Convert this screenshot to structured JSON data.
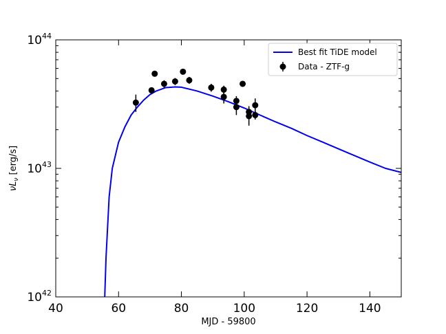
{
  "chart_data": {
    "type": "scatter",
    "xlabel": "MJD - 59800",
    "ylabel": "νL",
    "ylabel_sub": "ν",
    "ylabel_unit": " [erg/s]",
    "xlim": [
      40,
      150
    ],
    "ylim": [
      1e+42,
      1e+44
    ],
    "yscale": "log",
    "x_ticks": [
      40,
      60,
      80,
      100,
      120,
      140
    ],
    "x_tick_labels": [
      "40",
      "60",
      "80",
      "100",
      "120",
      "140"
    ],
    "y_ticks": [
      {
        "value": 1e+42,
        "base": "10",
        "exp": "42"
      },
      {
        "value": 1e+43,
        "base": "10",
        "exp": "43"
      },
      {
        "value": 1e+44,
        "base": "10",
        "exp": "44"
      }
    ],
    "legend": {
      "position": "top-right",
      "model_label": "Best fit TiDE model",
      "data_label": "Data - ZTF-g"
    },
    "series": [
      {
        "name": "Best fit TiDE model",
        "kind": "line",
        "color": "#0000ee",
        "x": [
          55.6,
          56,
          57,
          58,
          60,
          62,
          64,
          66,
          68,
          70,
          72,
          75,
          78,
          80,
          85,
          90,
          95,
          100,
          105,
          110,
          115,
          120,
          125,
          130,
          135,
          140,
          145,
          150
        ],
        "y": [
          1e+42,
          2e+42,
          6e+42,
          1e+43,
          1.6e+43,
          2.1e+43,
          2.6e+43,
          3e+43,
          3.4e+43,
          3.75e+43,
          4e+43,
          4.25e+43,
          4.3e+43,
          4.28e+43,
          4e+43,
          3.65e+43,
          3.3e+43,
          2.95e+43,
          2.6e+43,
          2.3e+43,
          2.05e+43,
          1.8e+43,
          1.6e+43,
          1.42e+43,
          1.26e+43,
          1.12e+43,
          1e+43,
          9.3e+42
        ]
      },
      {
        "name": "Data - ZTF-g",
        "kind": "errorbar",
        "color": "#000000",
        "points": [
          {
            "x": 65.5,
            "y": 3.25e+43,
            "err_lo": 5e+42,
            "err_hi": 5e+42
          },
          {
            "x": 70.5,
            "y": 4.05e+43,
            "err_lo": 2e+42,
            "err_hi": 2e+42
          },
          {
            "x": 71.5,
            "y": 5.45e+43,
            "err_lo": 2e+42,
            "err_hi": 2e+42
          },
          {
            "x": 74.5,
            "y": 4.55e+43,
            "err_lo": 3e+42,
            "err_hi": 3e+42
          },
          {
            "x": 78.0,
            "y": 4.75e+43,
            "err_lo": 3e+42,
            "err_hi": 3e+42
          },
          {
            "x": 80.5,
            "y": 5.65e+43,
            "err_lo": 2e+42,
            "err_hi": 2e+42
          },
          {
            "x": 82.5,
            "y": 4.85e+43,
            "err_lo": 3e+42,
            "err_hi": 3e+42
          },
          {
            "x": 89.5,
            "y": 4.25e+43,
            "err_lo": 3e+42,
            "err_hi": 3e+42
          },
          {
            "x": 93.5,
            "y": 4.1e+43,
            "err_lo": 3e+42,
            "err_hi": 3e+42
          },
          {
            "x": 93.5,
            "y": 3.6e+43,
            "err_lo": 4e+42,
            "err_hi": 4e+42
          },
          {
            "x": 97.5,
            "y": 3.35e+43,
            "err_lo": 3e+42,
            "err_hi": 3e+42
          },
          {
            "x": 97.5,
            "y": 3e+43,
            "err_lo": 4e+42,
            "err_hi": 4e+42
          },
          {
            "x": 99.5,
            "y": 4.55e+43,
            "err_lo": 2e+42,
            "err_hi": 2e+42
          },
          {
            "x": 101.5,
            "y": 2.75e+43,
            "err_lo": 3e+42,
            "err_hi": 3e+42
          },
          {
            "x": 101.5,
            "y": 2.55e+43,
            "err_lo": 4e+42,
            "err_hi": 4e+42
          },
          {
            "x": 103.5,
            "y": 3.1e+43,
            "err_lo": 4e+42,
            "err_hi": 4e+42
          },
          {
            "x": 103.5,
            "y": 2.6e+43,
            "err_lo": 2e+42,
            "err_hi": 2e+42
          }
        ]
      }
    ]
  }
}
